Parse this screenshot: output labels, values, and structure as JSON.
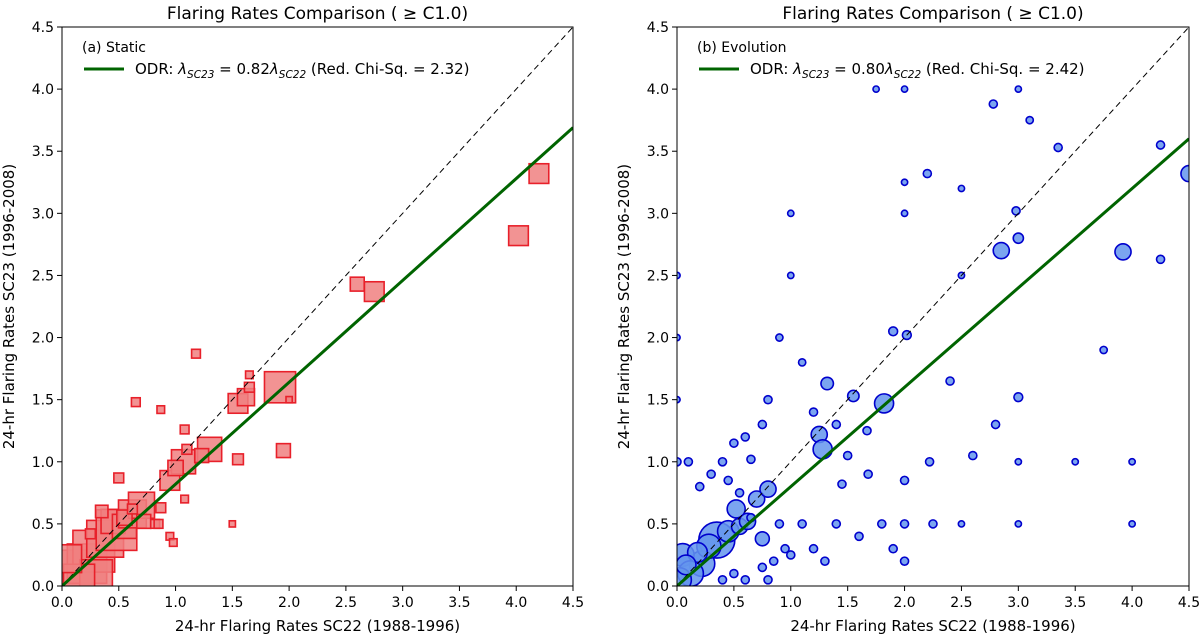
{
  "chart_data": [
    {
      "type": "scatter",
      "title": "Flaring Rates Comparison ( ≥ C1.0)",
      "panel_label": "(a) Static",
      "xlabel": "24-hr Flaring Rates SC22 (1988-1996)",
      "ylabel": "24-hr Flaring Rates SC23 (1996-2008)",
      "xlim": [
        0,
        4.5
      ],
      "ylim": [
        0,
        4.5
      ],
      "xticks": [
        "0.0",
        "0.5",
        "1.0",
        "1.5",
        "2.0",
        "2.5",
        "3.0",
        "3.5",
        "4.0",
        "4.5"
      ],
      "yticks": [
        "0.0",
        "0.5",
        "1.0",
        "1.5",
        "2.0",
        "2.5",
        "3.0",
        "3.5",
        "4.0",
        "4.5"
      ],
      "marker": "square",
      "marker_fill": "#f08080",
      "marker_edge": "#e8202a",
      "fit_color": "#006400",
      "fit_slope": 0.82,
      "reference_line": "y = x (dashed)",
      "legend": {
        "line_label_prefix": "ODR: ",
        "line_label_mid": " = 0.82",
        "line_label_suffix": " (Red. Chi-Sq. = 2.32)",
        "lambda_symbol": "λ",
        "sub_y": "SC23",
        "sub_x": "SC22"
      },
      "points": [
        {
          "x": 0.1,
          "y": 0.12,
          "s": 0.9
        },
        {
          "x": 0.22,
          "y": 0.18,
          "s": 0.8
        },
        {
          "x": 0.28,
          "y": 0.28,
          "s": 0.9
        },
        {
          "x": 0.38,
          "y": 0.38,
          "s": 0.7
        },
        {
          "x": 0.48,
          "y": 0.45,
          "s": 0.85
        },
        {
          "x": 0.3,
          "y": 0.08,
          "s": 0.55
        },
        {
          "x": 0.15,
          "y": 0.05,
          "s": 0.5
        },
        {
          "x": 0.05,
          "y": 0.22,
          "s": 0.4
        },
        {
          "x": 0.45,
          "y": 0.52,
          "s": 0.3
        },
        {
          "x": 0.55,
          "y": 0.48,
          "s": 0.3
        },
        {
          "x": 0.62,
          "y": 0.58,
          "s": 0.4
        },
        {
          "x": 0.7,
          "y": 0.65,
          "s": 0.35
        },
        {
          "x": 0.72,
          "y": 0.52,
          "s": 0.1
        },
        {
          "x": 0.55,
          "y": 0.55,
          "s": 0.12
        },
        {
          "x": 0.35,
          "y": 0.6,
          "s": 0.08
        },
        {
          "x": 0.25,
          "y": 0.42,
          "s": 0.05
        },
        {
          "x": 0.5,
          "y": 0.87,
          "s": 0.05
        },
        {
          "x": 0.62,
          "y": 0.62,
          "s": 0.05
        },
        {
          "x": 0.82,
          "y": 0.5,
          "s": 0.04
        },
        {
          "x": 0.95,
          "y": 0.85,
          "s": 0.2
        },
        {
          "x": 1.07,
          "y": 1.0,
          "s": 0.3
        },
        {
          "x": 1.0,
          "y": 0.95,
          "s": 0.12
        },
        {
          "x": 0.87,
          "y": 0.63,
          "s": 0.05
        },
        {
          "x": 0.85,
          "y": 0.5,
          "s": 0.04
        },
        {
          "x": 0.95,
          "y": 0.4,
          "s": 0.03
        },
        {
          "x": 0.98,
          "y": 0.35,
          "s": 0.03
        },
        {
          "x": 1.1,
          "y": 1.1,
          "s": 0.05
        },
        {
          "x": 1.08,
          "y": 1.26,
          "s": 0.04
        },
        {
          "x": 1.08,
          "y": 0.7,
          "s": 0.03
        },
        {
          "x": 1.3,
          "y": 1.1,
          "s": 0.3
        },
        {
          "x": 1.23,
          "y": 1.05,
          "s": 0.1
        },
        {
          "x": 1.18,
          "y": 1.87,
          "s": 0.04
        },
        {
          "x": 0.87,
          "y": 1.42,
          "s": 0.03
        },
        {
          "x": 0.65,
          "y": 1.48,
          "s": 0.04
        },
        {
          "x": 1.55,
          "y": 1.47,
          "s": 0.2
        },
        {
          "x": 1.62,
          "y": 1.52,
          "s": 0.15
        },
        {
          "x": 1.65,
          "y": 1.6,
          "s": 0.05
        },
        {
          "x": 1.65,
          "y": 1.7,
          "s": 0.03
        },
        {
          "x": 1.55,
          "y": 1.02,
          "s": 0.06
        },
        {
          "x": 1.5,
          "y": 0.5,
          "s": 0.02
        },
        {
          "x": 1.92,
          "y": 1.6,
          "s": 0.5
        },
        {
          "x": 1.95,
          "y": 1.09,
          "s": 0.1
        },
        {
          "x": 2.0,
          "y": 1.5,
          "s": 0.02
        },
        {
          "x": 2.6,
          "y": 2.43,
          "s": 0.1
        },
        {
          "x": 2.75,
          "y": 2.37,
          "s": 0.2
        },
        {
          "x": 4.02,
          "y": 2.82,
          "s": 0.2
        },
        {
          "x": 4.2,
          "y": 3.32,
          "s": 0.2
        }
      ]
    },
    {
      "type": "scatter",
      "title": "Flaring Rates Comparison ( ≥ C1.0)",
      "panel_label": "(b) Evolution",
      "xlabel": "24-hr Flaring Rates SC22 (1988-1996)",
      "ylabel": "24-hr Flaring Rates SC23 (1996-2008)",
      "xlim": [
        0,
        4.5
      ],
      "ylim": [
        0,
        4.5
      ],
      "xticks": [
        "0.0",
        "0.5",
        "1.0",
        "1.5",
        "2.0",
        "2.5",
        "3.0",
        "3.5",
        "4.0",
        "4.5"
      ],
      "yticks": [
        "0.0",
        "0.5",
        "1.0",
        "1.5",
        "2.0",
        "2.5",
        "3.0",
        "3.5",
        "4.0",
        "4.5"
      ],
      "marker": "circle",
      "marker_fill": "#6495ed",
      "marker_edge": "#0000cd",
      "fit_color": "#006400",
      "fit_slope": 0.8,
      "reference_line": "y = x (dashed)",
      "legend": {
        "line_label_prefix": "ODR: ",
        "line_label_mid": " = 0.80",
        "line_label_suffix": " (Red. Chi-Sq. = 2.42)",
        "lambda_symbol": "λ",
        "sub_y": "SC23",
        "sub_x": "SC22"
      },
      "points": [
        {
          "x": 0.35,
          "y": 0.37,
          "s": 1.0
        },
        {
          "x": 0.22,
          "y": 0.18,
          "s": 0.5
        },
        {
          "x": 0.05,
          "y": 0.25,
          "s": 0.4
        },
        {
          "x": 0.12,
          "y": 0.1,
          "s": 0.5
        },
        {
          "x": 0.02,
          "y": 0.05,
          "s": 0.45
        },
        {
          "x": 0.28,
          "y": 0.32,
          "s": 0.45
        },
        {
          "x": 0.18,
          "y": 0.27,
          "s": 0.3
        },
        {
          "x": 0.08,
          "y": 0.17,
          "s": 0.3
        },
        {
          "x": 0.45,
          "y": 0.44,
          "s": 0.35
        },
        {
          "x": 0.52,
          "y": 0.62,
          "s": 0.25
        },
        {
          "x": 0.55,
          "y": 0.48,
          "s": 0.2
        },
        {
          "x": 0.62,
          "y": 0.52,
          "s": 0.2
        },
        {
          "x": 0.7,
          "y": 0.7,
          "s": 0.2
        },
        {
          "x": 0.8,
          "y": 0.78,
          "s": 0.2
        },
        {
          "x": 0.75,
          "y": 0.38,
          "s": 0.15
        },
        {
          "x": 1.25,
          "y": 1.22,
          "s": 0.2
        },
        {
          "x": 1.28,
          "y": 1.1,
          "s": 0.28
        },
        {
          "x": 1.32,
          "y": 1.63,
          "s": 0.12
        },
        {
          "x": 1.55,
          "y": 1.53,
          "s": 0.1
        },
        {
          "x": 1.82,
          "y": 1.47,
          "s": 0.28
        },
        {
          "x": 2.85,
          "y": 2.7,
          "s": 0.2
        },
        {
          "x": 3.0,
          "y": 2.8,
          "s": 0.08
        },
        {
          "x": 3.92,
          "y": 2.69,
          "s": 0.2
        },
        {
          "x": 4.5,
          "y": 3.32,
          "s": 0.2
        },
        {
          "x": 4.25,
          "y": 2.63,
          "s": 0.05
        },
        {
          "x": 2.2,
          "y": 3.32,
          "s": 0.05
        },
        {
          "x": 3.35,
          "y": 3.53,
          "s": 0.05
        },
        {
          "x": 4.25,
          "y": 3.55,
          "s": 0.05
        },
        {
          "x": 2.78,
          "y": 3.88,
          "s": 0.05
        },
        {
          "x": 2.98,
          "y": 3.02,
          "s": 0.05
        },
        {
          "x": 3.75,
          "y": 1.9,
          "s": 0.04
        },
        {
          "x": 2.02,
          "y": 2.02,
          "s": 0.06
        },
        {
          "x": 1.9,
          "y": 2.05,
          "s": 0.06
        },
        {
          "x": 2.4,
          "y": 1.65,
          "s": 0.05
        },
        {
          "x": 2.6,
          "y": 1.05,
          "s": 0.05
        },
        {
          "x": 3.0,
          "y": 1.52,
          "s": 0.06
        },
        {
          "x": 2.8,
          "y": 1.3,
          "s": 0.05
        },
        {
          "x": 2.22,
          "y": 1.0,
          "s": 0.05
        },
        {
          "x": 2.0,
          "y": 0.85,
          "s": 0.05
        },
        {
          "x": 1.68,
          "y": 0.9,
          "s": 0.05
        },
        {
          "x": 1.5,
          "y": 1.05,
          "s": 0.05
        },
        {
          "x": 1.45,
          "y": 0.82,
          "s": 0.05
        },
        {
          "x": 1.4,
          "y": 1.3,
          "s": 0.05
        },
        {
          "x": 1.2,
          "y": 1.4,
          "s": 0.05
        },
        {
          "x": 1.1,
          "y": 1.8,
          "s": 0.04
        },
        {
          "x": 1.0,
          "y": 2.5,
          "s": 0.03
        },
        {
          "x": 1.0,
          "y": 3.0,
          "s": 0.03
        },
        {
          "x": 0.9,
          "y": 2.0,
          "s": 0.04
        },
        {
          "x": 0.8,
          "y": 1.5,
          "s": 0.05
        },
        {
          "x": 0.75,
          "y": 1.3,
          "s": 0.05
        },
        {
          "x": 0.6,
          "y": 1.2,
          "s": 0.05
        },
        {
          "x": 0.5,
          "y": 1.15,
          "s": 0.05
        },
        {
          "x": 0.4,
          "y": 1.0,
          "s": 0.05
        },
        {
          "x": 0.3,
          "y": 0.9,
          "s": 0.05
        },
        {
          "x": 0.2,
          "y": 0.8,
          "s": 0.05
        },
        {
          "x": 0.1,
          "y": 1.0,
          "s": 0.05
        },
        {
          "x": 0.0,
          "y": 1.5,
          "s": 0.03
        },
        {
          "x": 0.0,
          "y": 2.0,
          "s": 0.03
        },
        {
          "x": 0.0,
          "y": 2.5,
          "s": 0.03
        },
        {
          "x": 0.0,
          "y": 1.0,
          "s": 0.05
        },
        {
          "x": 0.9,
          "y": 0.5,
          "s": 0.05
        },
        {
          "x": 0.95,
          "y": 0.3,
          "s": 0.05
        },
        {
          "x": 0.85,
          "y": 0.2,
          "s": 0.05
        },
        {
          "x": 1.0,
          "y": 0.25,
          "s": 0.05
        },
        {
          "x": 1.1,
          "y": 0.5,
          "s": 0.05
        },
        {
          "x": 1.2,
          "y": 0.3,
          "s": 0.05
        },
        {
          "x": 1.3,
          "y": 0.2,
          "s": 0.05
        },
        {
          "x": 1.4,
          "y": 0.5,
          "s": 0.05
        },
        {
          "x": 1.6,
          "y": 0.4,
          "s": 0.05
        },
        {
          "x": 1.8,
          "y": 0.5,
          "s": 0.05
        },
        {
          "x": 1.9,
          "y": 0.3,
          "s": 0.05
        },
        {
          "x": 2.0,
          "y": 0.2,
          "s": 0.05
        },
        {
          "x": 2.0,
          "y": 0.5,
          "s": 0.05
        },
        {
          "x": 2.25,
          "y": 0.5,
          "s": 0.05
        },
        {
          "x": 2.5,
          "y": 0.5,
          "s": 0.03
        },
        {
          "x": 3.0,
          "y": 0.5,
          "s": 0.03
        },
        {
          "x": 4.0,
          "y": 0.5,
          "s": 0.03
        },
        {
          "x": 4.0,
          "y": 1.0,
          "s": 0.03
        },
        {
          "x": 3.0,
          "y": 1.0,
          "s": 0.03
        },
        {
          "x": 2.5,
          "y": 2.5,
          "s": 0.03
        },
        {
          "x": 2.5,
          "y": 3.2,
          "s": 0.03
        },
        {
          "x": 2.0,
          "y": 3.25,
          "s": 0.03
        },
        {
          "x": 2.0,
          "y": 3.0,
          "s": 0.03
        },
        {
          "x": 1.75,
          "y": 4.0,
          "s": 0.03
        },
        {
          "x": 2.0,
          "y": 4.0,
          "s": 0.03
        },
        {
          "x": 3.0,
          "y": 4.0,
          "s": 0.03
        },
        {
          "x": 3.1,
          "y": 3.75,
          "s": 0.04
        },
        {
          "x": 3.5,
          "y": 1.0,
          "s": 0.03
        },
        {
          "x": 1.67,
          "y": 1.25,
          "s": 0.05
        },
        {
          "x": 0.65,
          "y": 1.02,
          "s": 0.05
        },
        {
          "x": 0.45,
          "y": 0.85,
          "s": 0.05
        },
        {
          "x": 0.55,
          "y": 0.75,
          "s": 0.05
        },
        {
          "x": 0.65,
          "y": 0.55,
          "s": 0.05
        },
        {
          "x": 0.75,
          "y": 0.15,
          "s": 0.05
        },
        {
          "x": 0.6,
          "y": 0.05,
          "s": 0.05
        },
        {
          "x": 0.5,
          "y": 0.1,
          "s": 0.05
        },
        {
          "x": 0.4,
          "y": 0.05,
          "s": 0.05
        },
        {
          "x": 0.8,
          "y": 0.05,
          "s": 0.05
        }
      ]
    }
  ]
}
